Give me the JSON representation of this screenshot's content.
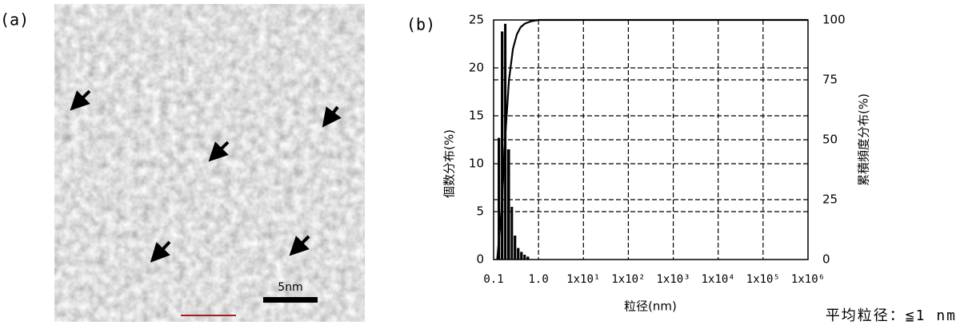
{
  "image_panel": {
    "label": "(a)",
    "scale_bar": "5nm"
  },
  "chart_data": {
    "type": "histogram",
    "panel_label": "(b)",
    "xlabel": "粒径(nm)",
    "ylabel": "個数分布(%)",
    "y2label": "累積頻度分布(%)",
    "annotation": "平均粒径：≦1 nm",
    "xscale": "log",
    "xlim": [
      0.1,
      1000000
    ],
    "xticks": [
      0.1,
      {
        "value": 1,
        "label": "1.0"
      },
      {
        "value": 10,
        "label": "1x10¹"
      },
      {
        "value": 100,
        "label": "1x10²"
      },
      {
        "value": 1000,
        "label": "1x10³"
      },
      {
        "value": 10000,
        "label": "1x10⁴"
      },
      {
        "value": 100000,
        "label": "1x10⁵"
      },
      {
        "value": 1000000,
        "label": "1x10⁶"
      }
    ],
    "ylim": [
      0,
      25
    ],
    "yticks": [
      0,
      5,
      10,
      15,
      20,
      25
    ],
    "y2lim": [
      0,
      100
    ],
    "y2ticks": [
      0,
      25,
      50,
      75,
      100
    ],
    "grid": true,
    "color": "#000000",
    "bins": [
      0.123,
      0.145,
      0.171,
      0.2,
      0.24,
      0.28,
      0.33,
      0.39,
      0.46,
      0.54,
      0.64
    ],
    "values": [
      12.7,
      23.8,
      24.6,
      11.5,
      5.5,
      2.5,
      1.2,
      0.8,
      0.5,
      0.3
    ],
    "line": {
      "axis": "y2",
      "color": "#000000",
      "x": [
        0.12,
        0.15,
        0.18,
        0.22,
        0.27,
        0.33,
        0.4,
        0.5,
        0.7,
        1,
        10,
        1000000
      ],
      "values": [
        0,
        20,
        50,
        75,
        88,
        94,
        97,
        98.5,
        99.5,
        100,
        100,
        100
      ]
    }
  }
}
